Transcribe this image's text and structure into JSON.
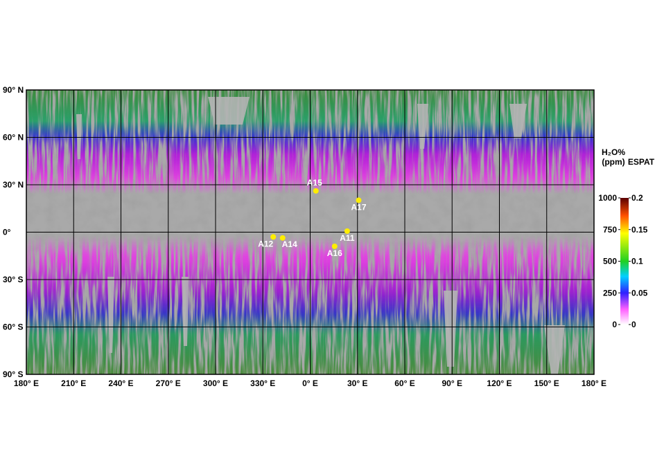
{
  "map": {
    "latitude_labels": [
      {
        "value": 90,
        "label": "90° N"
      },
      {
        "value": 60,
        "label": "60° N"
      },
      {
        "value": 30,
        "label": "30° N"
      },
      {
        "value": 0,
        "label": "0°"
      },
      {
        "value": -30,
        "label": "30° S"
      },
      {
        "value": -60,
        "label": "60° S"
      },
      {
        "value": -90,
        "label": "90° S"
      }
    ],
    "longitude_labels": [
      {
        "value": 180,
        "label": "180° E"
      },
      {
        "value": 210,
        "label": "210° E"
      },
      {
        "value": 240,
        "label": "240° E"
      },
      {
        "value": 270,
        "label": "270° E"
      },
      {
        "value": 300,
        "label": "300° E"
      },
      {
        "value": 330,
        "label": "330° E"
      },
      {
        "value": 0,
        "label": "0° E"
      },
      {
        "value": 30,
        "label": "30° E"
      },
      {
        "value": 60,
        "label": "60° E"
      },
      {
        "value": 90,
        "label": "90° E"
      },
      {
        "value": 120,
        "label": "120° E"
      },
      {
        "value": 150,
        "label": "150° E"
      },
      {
        "value": 180,
        "label": "180° E"
      }
    ],
    "landing_sites": [
      {
        "label": "A15",
        "lat": 26.13,
        "lon": 3.63
      },
      {
        "label": "A17",
        "lat": 20.19,
        "lon": 30.77
      },
      {
        "label": "A11",
        "lat": 0.67,
        "lon": 23.47
      },
      {
        "label": "A12",
        "lat": -3.01,
        "lon": 336.58
      },
      {
        "label": "A14",
        "lat": -3.65,
        "lon": 342.53
      },
      {
        "label": "A16",
        "lat": -8.97,
        "lon": 15.5
      }
    ],
    "colorbar": {
      "title_left": [
        "H₂O%",
        "(ppm)"
      ],
      "title_right": "ESPAT",
      "left_ticks": [
        0,
        250,
        500,
        750,
        1000
      ],
      "right_ticks": [
        0,
        0.05,
        0.1,
        0.15,
        0.2
      ]
    }
  }
}
